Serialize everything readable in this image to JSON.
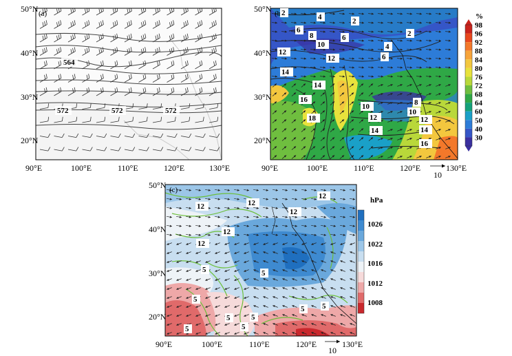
{
  "panels": {
    "a": {
      "label": "(a)",
      "x_ticks": [
        "90°E",
        "100°E",
        "110°E",
        "120°E",
        "130°E"
      ],
      "y_ticks": [
        "20°N",
        "30°N",
        "40°N",
        "50°N"
      ],
      "contour_labels": [
        "564",
        "572",
        "572",
        "572"
      ]
    },
    "b": {
      "label": "(b)",
      "x_ticks": [
        "90°E",
        "100°E",
        "110°E",
        "120°E",
        "130°E"
      ],
      "y_ticks": [
        "20°N",
        "30°N",
        "40°N",
        "50°N"
      ],
      "contour_labels": [
        "2",
        "4",
        "2",
        "6",
        "8",
        "6",
        "2",
        "10",
        "4",
        "12",
        "6",
        "12",
        "14",
        "14",
        "16",
        "18",
        "10",
        "12",
        "8",
        "10",
        "14",
        "12",
        "14",
        "16"
      ],
      "ref_vector": "10",
      "colorbar": {
        "unit": "%",
        "levels": [
          "98",
          "96",
          "92",
          "88",
          "84",
          "80",
          "76",
          "72",
          "68",
          "64",
          "60",
          "50",
          "40",
          "30"
        ],
        "colors": [
          "#c9231c",
          "#e8471d",
          "#f3782a",
          "#f7a43a",
          "#f3c73e",
          "#e8e23c",
          "#b9d83a",
          "#6fbe3f",
          "#2fa846",
          "#14a17a",
          "#1aa0c8",
          "#2d7cd8",
          "#3556c7",
          "#3a2fa0"
        ]
      }
    },
    "c": {
      "label": "(c)",
      "x_ticks": [
        "90°E",
        "100°E",
        "110°E",
        "120°E",
        "130°E"
      ],
      "y_ticks": [
        "20°N",
        "30°N",
        "40°N",
        "50°N"
      ],
      "contour_labels": [
        "12",
        "12",
        "12",
        "12",
        "12",
        "12",
        "5",
        "5",
        "5",
        "5",
        "5",
        "5",
        "5",
        "5",
        "5"
      ],
      "ref_vector": "10",
      "colorbar": {
        "unit": "hPa",
        "labels": [
          "1026",
          "1022",
          "1016",
          "1012",
          "1008"
        ],
        "colors": [
          "#1f6fbf",
          "#3e8ad0",
          "#6aa8dc",
          "#9cc6e8",
          "#c8def0",
          "#eef3f7",
          "#f6dada",
          "#eea8a8",
          "#e06a6a",
          "#c9282d"
        ]
      }
    }
  }
}
